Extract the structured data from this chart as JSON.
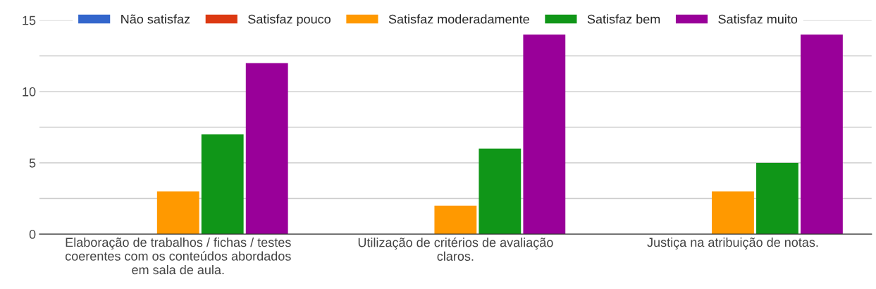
{
  "chart_data": {
    "type": "bar",
    "categories": [
      "Elaboração de trabalhos / fichas / testes\ncoerentes com os conteúdos abordados\nem sala de aula.",
      "Utilização de critérios de avaliação\nclaros.",
      "Justiça na atribuição de notas."
    ],
    "series": [
      {
        "name": "Não satisfaz",
        "color": "#3366cc",
        "values": [
          0,
          0,
          0
        ]
      },
      {
        "name": "Satisfaz pouco",
        "color": "#dc3912",
        "values": [
          0,
          0,
          0
        ]
      },
      {
        "name": "Satisfaz moderadamente",
        "color": "#ff9900",
        "values": [
          3,
          2,
          3
        ]
      },
      {
        "name": "Satisfaz bem",
        "color": "#109618",
        "values": [
          7,
          6,
          5
        ]
      },
      {
        "name": "Satisfaz muito",
        "color": "#990099",
        "values": [
          12,
          14,
          14
        ]
      }
    ],
    "ylim": [
      0,
      15
    ],
    "yticks": [
      0,
      {
        "value": 2.5,
        "label": null
      },
      5,
      {
        "value": 7.5,
        "label": null
      },
      10,
      {
        "value": 12.5,
        "label": null
      },
      15
    ],
    "grid": "y",
    "legend": "top"
  }
}
